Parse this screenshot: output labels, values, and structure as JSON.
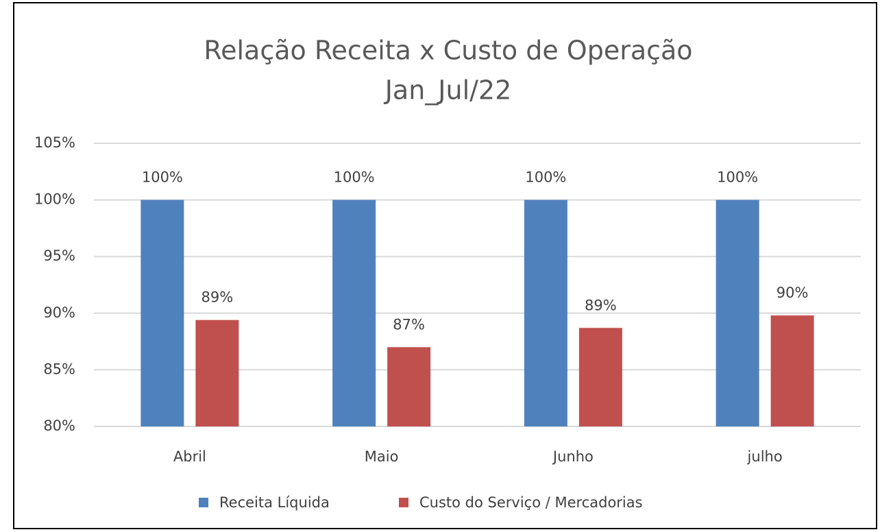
{
  "chart_data": {
    "type": "bar",
    "title": "Relação Receita x Custo de Operação",
    "subtitle": "Jan_Jul/22",
    "categories": [
      "Abril",
      "Maio",
      "Junho",
      "julho"
    ],
    "series": [
      {
        "name": "Receita Líquida",
        "color": "#4f81bd",
        "values": [
          100,
          100,
          100,
          100
        ],
        "value_labels": [
          "100%",
          "100%",
          "100%",
          "100%"
        ]
      },
      {
        "name": "Custo do Serviço / Mercadorias",
        "color": "#c0504d",
        "values": [
          89.4,
          87,
          88.7,
          89.8
        ],
        "value_labels": [
          "89%",
          "87%",
          "89%",
          "90%"
        ]
      }
    ],
    "ylim": [
      80,
      105
    ],
    "yticks": [
      {
        "value": 80,
        "label": "80%"
      },
      {
        "value": 85,
        "label": "85%"
      },
      {
        "value": 90,
        "label": "90%"
      },
      {
        "value": 95,
        "label": "95%"
      },
      {
        "value": 100,
        "label": "100%"
      },
      {
        "value": 105,
        "label": "105%"
      }
    ],
    "grid": true,
    "legend": "bottom"
  }
}
